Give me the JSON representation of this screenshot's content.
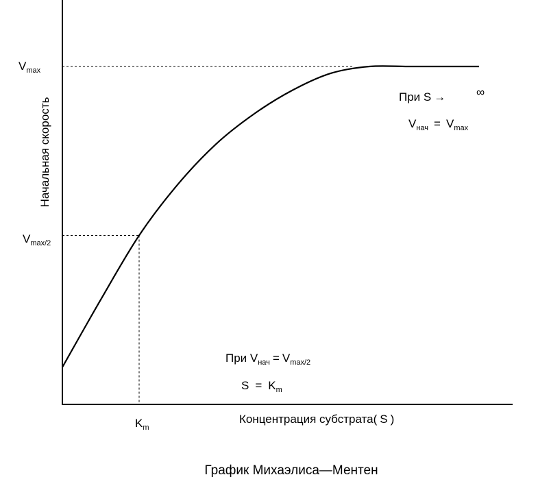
{
  "chart_data": {
    "type": "line",
    "title": "",
    "xlabel": "Концентрация субстрата",
    "xlabel_paren": "S",
    "ylabel": "Начальная скорость",
    "xlim": [
      0,
      6
    ],
    "ylim": [
      0,
      1.1
    ],
    "Km": 1,
    "Vmax": 1,
    "series": [
      {
        "x": [
          0,
          0.5,
          1.0,
          1.5,
          2.0,
          2.5,
          3.0,
          3.5,
          4.0,
          4.5,
          5.0
        ],
        "y": [
          0.11,
          0.31,
          0.5,
          0.65,
          0.77,
          0.86,
          0.93,
          0.98,
          1.0,
          1.0,
          1.0
        ]
      }
    ],
    "ticks": {
      "vmax_main": "V",
      "vmax_sub": "max",
      "vhalf_main": "V",
      "vhalf_sub": "max/2",
      "km_main": "K",
      "km_sub": "m"
    },
    "annotations": {
      "top_line1": "При S",
      "top_arrow": "→",
      "top_inf": "∞",
      "top_v": "V",
      "top_v_sub": "нач",
      "top_eq": "=",
      "top_v2": "V",
      "top_v2_sub": "max",
      "bottom_line1_prefix": "При V",
      "bottom_v_sub": "нач",
      "bottom_eq": "=",
      "bottom_v2": "V",
      "bottom_v2_sub": "max/2",
      "bottom_s": "S",
      "bottom_eq2": "=",
      "bottom_k": "K",
      "bottom_k_sub": "m"
    },
    "caption": "График Михаэлиса—Ментен"
  }
}
